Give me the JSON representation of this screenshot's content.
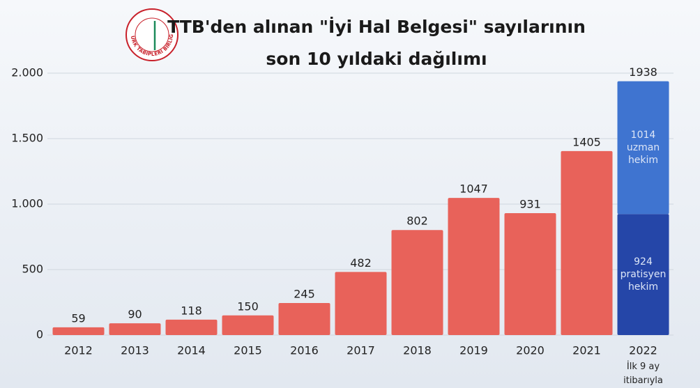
{
  "chart_data": {
    "type": "stacked_bar",
    "title_lines": [
      "TTB'den alınan \"İyi Hal Belgesi\" sayılarının",
      "son 10 yıldaki dağılımı"
    ],
    "logo_text": "TÜRK TABİPLERİ BİRLİĞİ",
    "categories": [
      "2012",
      "2013",
      "2014",
      "2015",
      "2016",
      "2017",
      "2018",
      "2019",
      "2020",
      "2021",
      "2022"
    ],
    "category_notes": [
      null,
      null,
      null,
      null,
      null,
      null,
      null,
      null,
      null,
      null,
      "İlk 9 ay itibarıyla"
    ],
    "series": [
      {
        "color": "#e8625a",
        "values": [
          59,
          90,
          118,
          150,
          245,
          482,
          802,
          1047,
          931,
          1405,
          null
        ]
      },
      {
        "name": "pratisyen hekim",
        "color": "#2546a8",
        "values": [
          null,
          null,
          null,
          null,
          null,
          null,
          null,
          null,
          null,
          null,
          924
        ]
      },
      {
        "name": "uzman hekim",
        "color": "#3f74d0",
        "values": [
          null,
          null,
          null,
          null,
          null,
          null,
          null,
          null,
          null,
          null,
          1014
        ]
      }
    ],
    "stack_totals": [
      null,
      null,
      null,
      null,
      null,
      null,
      null,
      null,
      null,
      null,
      1938
    ],
    "ylim": [
      0,
      2000
    ],
    "yticks": [
      0,
      500,
      {
        "value": 1000,
        "label": "1.000"
      },
      {
        "value": 1500,
        "label": "1.500"
      },
      {
        "value": 2000,
        "label": "2.000"
      }
    ],
    "grid": true
  }
}
